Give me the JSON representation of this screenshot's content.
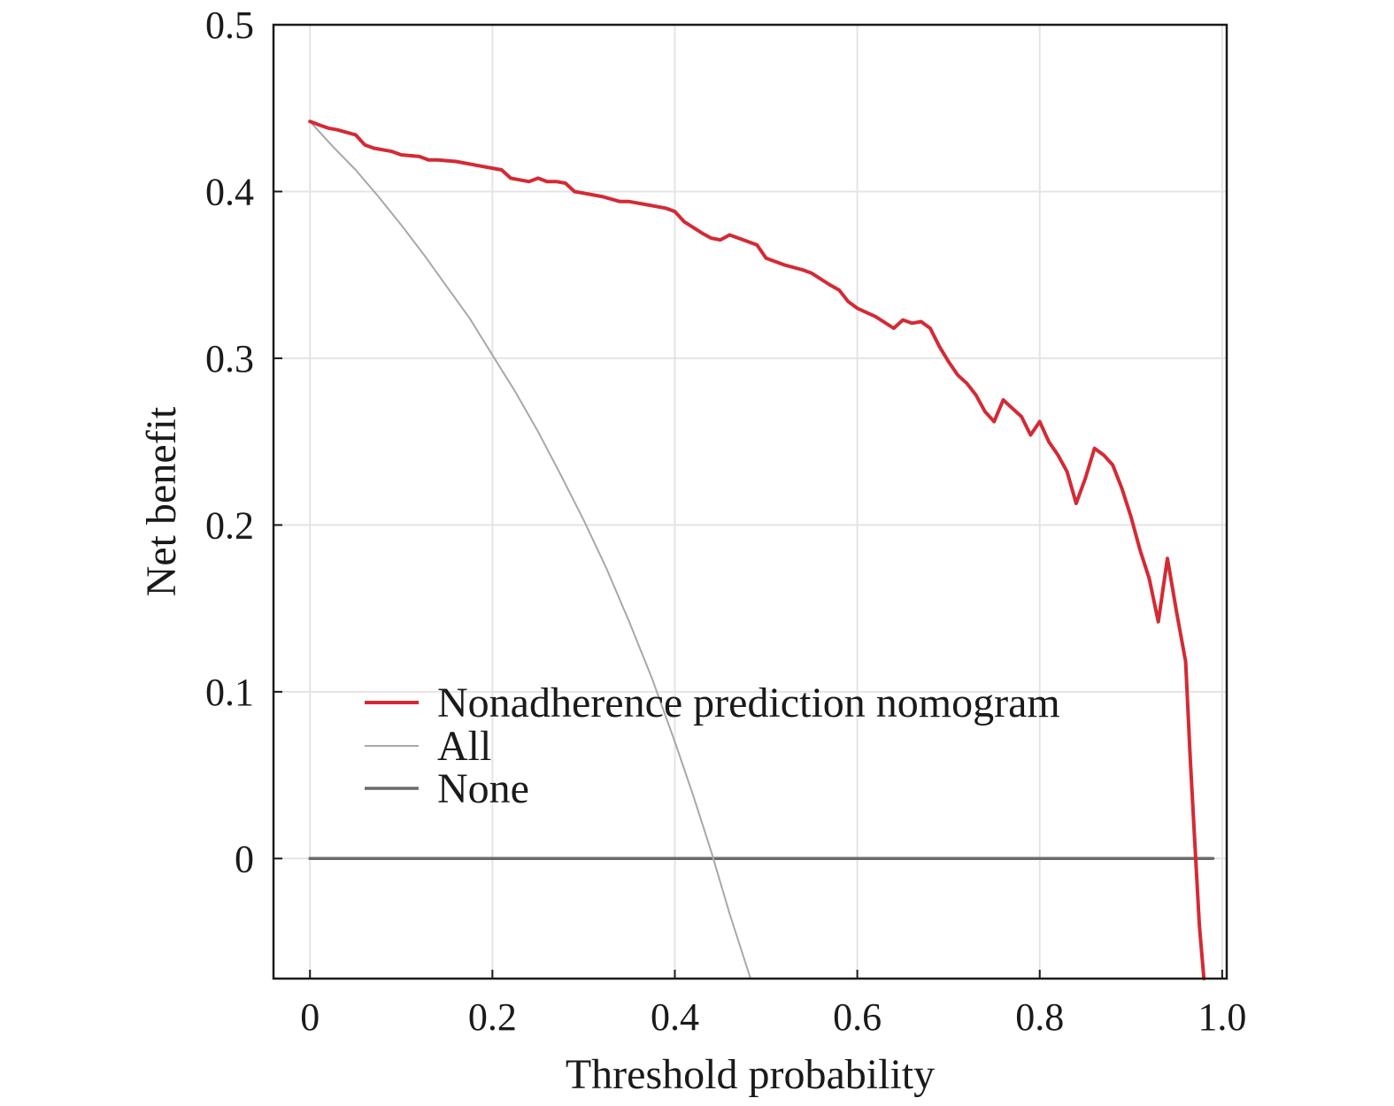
{
  "chart_data": {
    "type": "line",
    "xlabel": "Threshold probability",
    "ylabel": "Net benefit",
    "xlim": [
      -0.04,
      1.005
    ],
    "ylim": [
      -0.072,
      0.5
    ],
    "x_ticks": [
      {
        "value": 0,
        "label": "0"
      },
      {
        "value": 0.2,
        "label": "0.2"
      },
      {
        "value": 0.4,
        "label": "0.4"
      },
      {
        "value": 0.6,
        "label": "0.6"
      },
      {
        "value": 0.8,
        "label": "0.8"
      },
      {
        "value": 1.0,
        "label": "1.0"
      }
    ],
    "y_ticks": [
      {
        "value": 0,
        "label": "0"
      },
      {
        "value": 0.1,
        "label": "0.1"
      },
      {
        "value": 0.2,
        "label": "0.2"
      },
      {
        "value": 0.3,
        "label": "0.3"
      },
      {
        "value": 0.4,
        "label": "0.4"
      },
      {
        "value": 0.5,
        "label": "0.5"
      }
    ],
    "grid": true,
    "legend_position": "lower-left",
    "series": [
      {
        "name": "Nonadherence prediction nomogram",
        "color": "#d42a35",
        "x": [
          0,
          0.01,
          0.02,
          0.03,
          0.05,
          0.06,
          0.07,
          0.09,
          0.1,
          0.12,
          0.13,
          0.14,
          0.16,
          0.18,
          0.2,
          0.21,
          0.22,
          0.23,
          0.24,
          0.25,
          0.26,
          0.27,
          0.28,
          0.29,
          0.3,
          0.32,
          0.34,
          0.35,
          0.37,
          0.39,
          0.4,
          0.41,
          0.43,
          0.44,
          0.45,
          0.46,
          0.47,
          0.49,
          0.5,
          0.52,
          0.54,
          0.55,
          0.57,
          0.58,
          0.59,
          0.6,
          0.62,
          0.64,
          0.65,
          0.66,
          0.67,
          0.68,
          0.69,
          0.7,
          0.71,
          0.72,
          0.73,
          0.74,
          0.75,
          0.76,
          0.77,
          0.78,
          0.79,
          0.8,
          0.81,
          0.82,
          0.83,
          0.84,
          0.85,
          0.86,
          0.87,
          0.88,
          0.89,
          0.9,
          0.91,
          0.92,
          0.93,
          0.94,
          0.95,
          0.96,
          0.965,
          0.97,
          0.975,
          0.98
        ],
        "values": [
          0.442,
          0.44,
          0.438,
          0.437,
          0.434,
          0.428,
          0.426,
          0.424,
          0.422,
          0.421,
          0.419,
          0.419,
          0.418,
          0.416,
          0.414,
          0.413,
          0.408,
          0.407,
          0.406,
          0.408,
          0.406,
          0.406,
          0.405,
          0.4,
          0.399,
          0.397,
          0.394,
          0.394,
          0.392,
          0.39,
          0.388,
          0.382,
          0.375,
          0.372,
          0.371,
          0.374,
          0.372,
          0.368,
          0.36,
          0.356,
          0.353,
          0.351,
          0.344,
          0.341,
          0.334,
          0.33,
          0.325,
          0.318,
          0.323,
          0.321,
          0.322,
          0.318,
          0.307,
          0.298,
          0.29,
          0.285,
          0.278,
          0.268,
          0.262,
          0.275,
          0.27,
          0.265,
          0.254,
          0.262,
          0.25,
          0.242,
          0.232,
          0.213,
          0.228,
          0.246,
          0.242,
          0.236,
          0.222,
          0.205,
          0.185,
          0.168,
          0.142,
          0.18,
          0.148,
          0.118,
          0.06,
          0.01,
          -0.04,
          -0.072
        ]
      },
      {
        "name": "All",
        "color": "#a8a8a8",
        "x": [
          0,
          0.025,
          0.05,
          0.075,
          0.1,
          0.125,
          0.15,
          0.175,
          0.2,
          0.225,
          0.25,
          0.275,
          0.3,
          0.325,
          0.35,
          0.375,
          0.4,
          0.42,
          0.44,
          0.46,
          0.483
        ],
        "values": [
          0.442,
          0.427,
          0.413,
          0.397,
          0.38,
          0.362,
          0.343,
          0.324,
          0.302,
          0.28,
          0.256,
          0.23,
          0.203,
          0.174,
          0.142,
          0.108,
          0.07,
          0.038,
          0.004,
          -0.033,
          -0.072
        ]
      },
      {
        "name": "None",
        "color": "#6b6b6b",
        "x": [
          0,
          0.99
        ],
        "values": [
          0,
          0
        ]
      }
    ]
  }
}
